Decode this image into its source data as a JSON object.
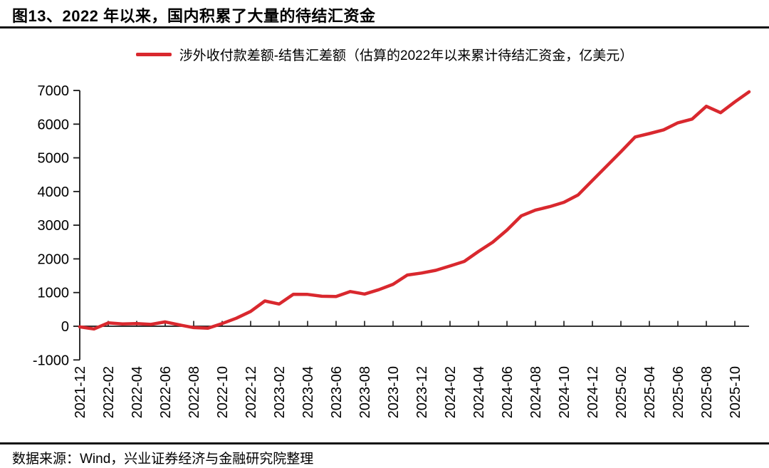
{
  "header": {
    "title": "图13、2022 年以来，国内积累了大量的待结汇资金"
  },
  "legend": {
    "label": "涉外收付款差额-结售汇差额（估算的2022年以来累计待结汇资金，亿美元）"
  },
  "footer": {
    "source": "数据来源：Wind，兴业证券经济与金融研究院整理"
  },
  "colors": {
    "line": "#D9282E",
    "axis": "#1a1a1a",
    "text": "#000000"
  },
  "chart_data": {
    "type": "line",
    "title": "涉外收付款差额-结售汇差额（估算的2022年以来累计待结汇资金，亿美元）",
    "unit": "亿美元",
    "grid": false,
    "legend_position": "top-center",
    "ylim": [
      -1000,
      7000
    ],
    "y_ticks": [
      7000,
      6000,
      5000,
      4000,
      3000,
      2000,
      1000,
      0,
      -1000
    ],
    "x_tick_labels": [
      "2021-12",
      "2022-02",
      "2022-04",
      "2022-06",
      "2022-08",
      "2022-10",
      "2022-12",
      "2023-02",
      "2023-04",
      "2023-06",
      "2023-08",
      "2023-10",
      "2023-12",
      "2024-02",
      "2024-04",
      "2024-06",
      "2024-08",
      "2024-10",
      "2024-12",
      "2025-02",
      "2025-04",
      "2025-06",
      "2025-08",
      "2025-10"
    ],
    "x": [
      "2021-12",
      "2022-01",
      "2022-02",
      "2022-03",
      "2022-04",
      "2022-05",
      "2022-06",
      "2022-07",
      "2022-08",
      "2022-09",
      "2022-10",
      "2022-11",
      "2022-12",
      "2023-01",
      "2023-02",
      "2023-03",
      "2023-04",
      "2023-05",
      "2023-06",
      "2023-07",
      "2023-08",
      "2023-09",
      "2023-10",
      "2023-11",
      "2023-12",
      "2024-01",
      "2024-02",
      "2024-03",
      "2024-04",
      "2024-05",
      "2024-06",
      "2024-07",
      "2024-08",
      "2024-09",
      "2024-10",
      "2024-11",
      "2024-12",
      "2025-01",
      "2025-02",
      "2025-03",
      "2025-04",
      "2025-05",
      "2025-06",
      "2025-07",
      "2025-08",
      "2025-09",
      "2025-10",
      "2025-11"
    ],
    "series": [
      {
        "name": "涉外收付款差额-结售汇差额（估算的2022年以来累计待结汇资金，亿美元）",
        "values": [
          -20,
          -80,
          100,
          70,
          80,
          55,
          130,
          40,
          -40,
          -60,
          80,
          240,
          440,
          750,
          660,
          950,
          945,
          890,
          885,
          1030,
          955,
          1085,
          1245,
          1520,
          1580,
          1660,
          1790,
          1925,
          2220,
          2495,
          2855,
          3275,
          3450,
          3550,
          3680,
          3900,
          4330,
          4755,
          5180,
          5620,
          5720,
          5830,
          6040,
          6150,
          6530,
          6340,
          6660,
          6960
        ]
      }
    ]
  }
}
